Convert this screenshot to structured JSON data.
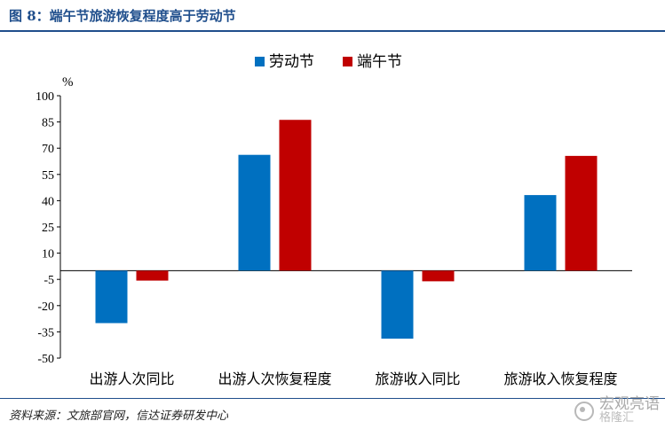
{
  "header": {
    "title": "图 8：端午节旅游恢复程度高于劳动节"
  },
  "footer": {
    "source": "资料来源：文旅部官网，信达证券研发中心"
  },
  "watermark": {
    "line1": "宏观亮语",
    "line2": "格隆汇"
  },
  "colors": {
    "laodong": "#0070c0",
    "duanwu": "#c00000",
    "title": "#1f4e8c"
  },
  "chart_data": {
    "type": "bar",
    "title": "",
    "xlabel": "",
    "ylabel": "%",
    "categories": [
      "出游人次同比",
      "出游人次恢复程度",
      "旅游收入同比",
      "旅游收入恢复程度"
    ],
    "series": [
      {
        "name": "劳动节",
        "color": "#0070c0",
        "values": [
          -30.0,
          66.2,
          -38.9,
          43.2
        ]
      },
      {
        "name": "端午节",
        "color": "#c00000",
        "values": [
          -5.7,
          86.2,
          -6.1,
          65.6
        ]
      }
    ],
    "ylim": [
      -50,
      100
    ],
    "yticks": [
      100,
      85,
      70,
      55,
      40,
      25,
      10,
      -5,
      -20,
      -35,
      -50
    ],
    "grid": false,
    "legend": "top-center"
  }
}
